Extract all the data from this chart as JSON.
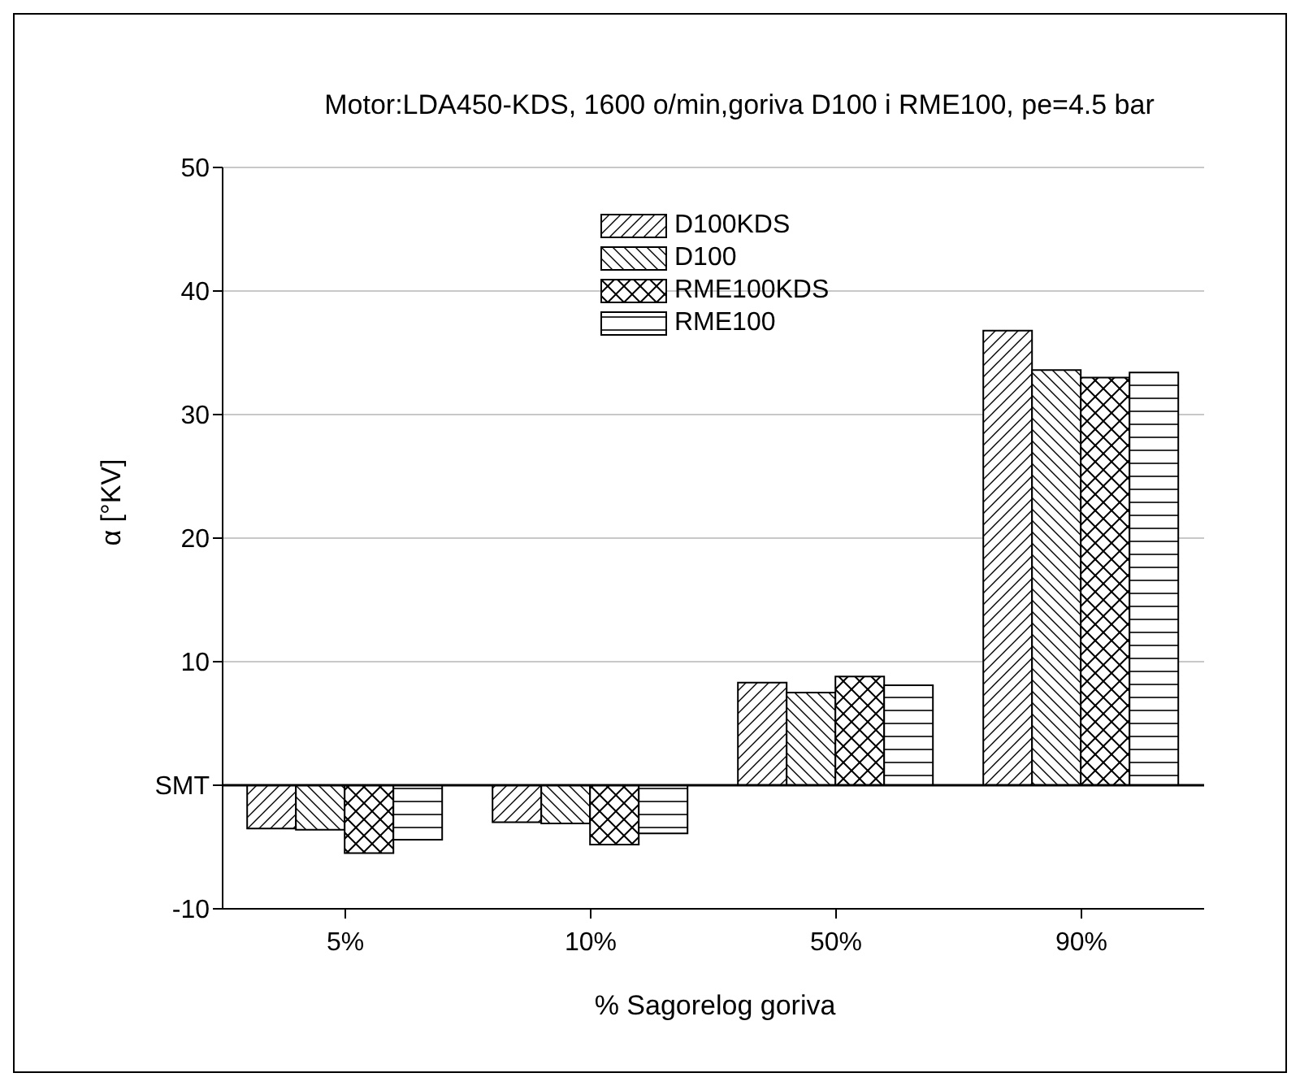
{
  "chart_data": {
    "type": "bar",
    "title": "Motor:LDA450-KDS, 1600 o/min,goriva D100 i RME100, pe=4.5 bar",
    "xlabel": "% Sagorelog goriva",
    "ylabel": "α [°KV]",
    "categories": [
      "5%",
      "10%",
      "50%",
      "90%"
    ],
    "series": [
      {
        "name": "D100KDS",
        "color": "#000000",
        "values": [
          -3.5,
          -3.0,
          8.3,
          36.8
        ]
      },
      {
        "name": "D100",
        "color": "#000000",
        "values": [
          -3.6,
          -3.1,
          7.5,
          33.6
        ]
      },
      {
        "name": "RME100KDS",
        "color": "#000000",
        "values": [
          -5.5,
          -4.8,
          8.8,
          33.0
        ]
      },
      {
        "name": "RME100",
        "color": "#000000",
        "values": [
          -4.4,
          -3.9,
          8.1,
          33.4
        ]
      }
    ],
    "ylim": [
      -10,
      50
    ],
    "yticks": [
      -10,
      {
        "value": 0,
        "label": "SMT"
      },
      10,
      20,
      30,
      40,
      50
    ],
    "ref_lines": [
      {
        "axis": "y",
        "value": 0,
        "color": "#000000"
      }
    ],
    "grid": "y",
    "legend": "top"
  }
}
